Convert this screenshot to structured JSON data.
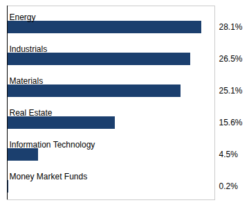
{
  "chart_data": {
    "type": "bar",
    "orientation": "horizontal",
    "categories": [
      "Energy",
      "Industrials",
      "Materials",
      "Real Estate",
      "Information Technology",
      "Money Market Funds"
    ],
    "values": [
      28.1,
      26.5,
      25.1,
      15.6,
      4.5,
      0.2
    ],
    "value_labels": [
      "28.1%",
      "26.5%",
      "25.1%",
      "15.6%",
      "4.5%",
      "0.2%"
    ],
    "data_labels": true,
    "color": "#1b3f6e",
    "xlim": [
      0,
      30
    ],
    "tick_labels": false
  }
}
